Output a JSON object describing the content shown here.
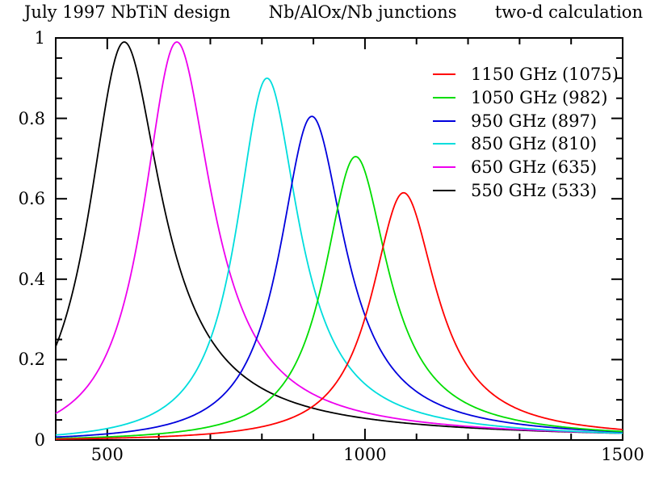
{
  "title": {
    "left": "July 1997 NbTiN design",
    "center": "Nb/AlOx/Nb junctions",
    "right": "two-d calculation"
  },
  "chart_data": {
    "type": "line",
    "title": "July 1997 NbTiN design   Nb/AlOx/Nb junctions   two-d calculation",
    "model": "resonance curve: y = peak_y / (1 + q^2 * (x/peak_x - peak_x/x)^2)",
    "grid": false,
    "legend_position": "top-right",
    "x_axis": {
      "range": [
        400,
        1500
      ],
      "major_ticks": [
        500,
        1000,
        1500
      ],
      "tick_labels": [
        "500",
        "1000",
        "1500"
      ],
      "minor_tick_step": 100,
      "unit": "GHz"
    },
    "y_axis": {
      "range": [
        0,
        1
      ],
      "major_ticks": [
        0,
        0.2,
        0.4,
        0.6,
        0.8,
        1
      ],
      "tick_labels": [
        "0",
        "0.2",
        "0.4",
        "0.6",
        "0.8",
        "1"
      ],
      "minor_tick_step": 0.05
    },
    "series": [
      {
        "label": "1150 GHz (1075)",
        "color": "#ff0000",
        "design_ghz": 1150,
        "peak_x": 1075,
        "peak_y": 0.615,
        "q": 7.0
      },
      {
        "label": "1050 GHz (982)",
        "color": "#00dd00",
        "design_ghz": 1050,
        "peak_x": 982,
        "peak_y": 0.705,
        "q": 6.5
      },
      {
        "label": "950 GHz (897)",
        "color": "#0000dd",
        "design_ghz": 950,
        "peak_x": 897,
        "peak_y": 0.805,
        "q": 5.8
      },
      {
        "label": "850 GHz (810)",
        "color": "#00dddd",
        "design_ghz": 850,
        "peak_x": 810,
        "peak_y": 0.9,
        "q": 5.5
      },
      {
        "label": "650 GHz (635)",
        "color": "#ee00ee",
        "design_ghz": 650,
        "peak_x": 635,
        "peak_y": 0.99,
        "q": 3.9
      },
      {
        "label": "550 GHz (533)",
        "color": "#000000",
        "design_ghz": 550,
        "peak_x": 533,
        "peak_y": 0.99,
        "q": 3.1
      }
    ]
  }
}
